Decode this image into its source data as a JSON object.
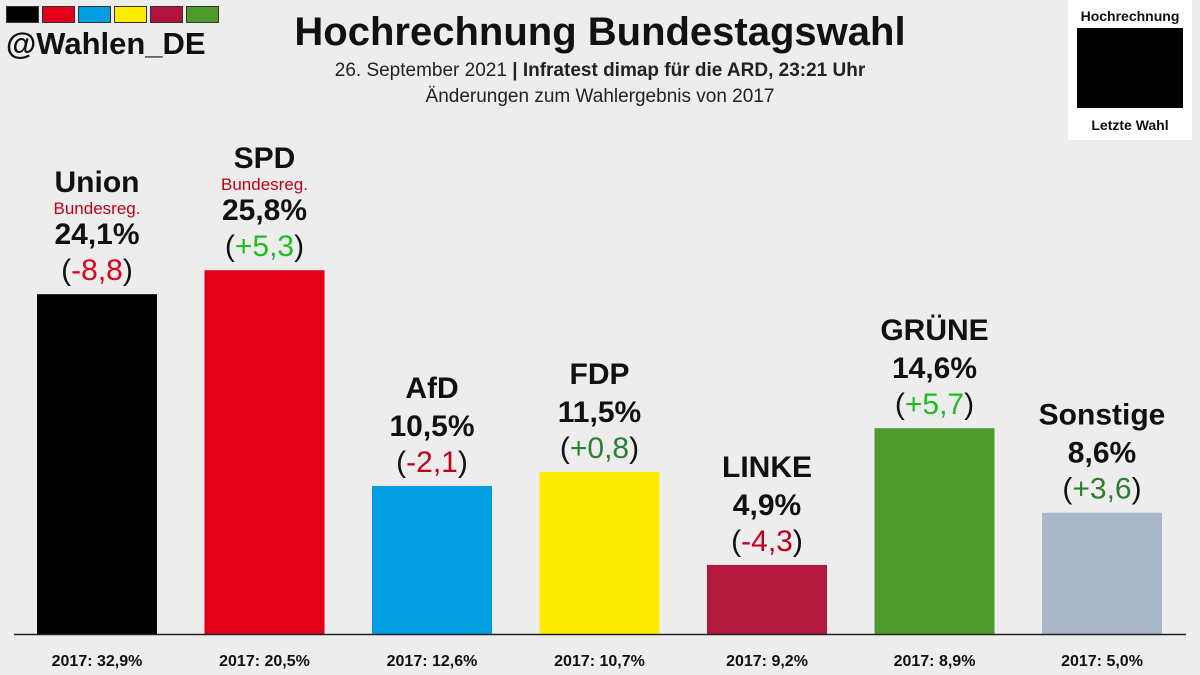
{
  "brand_colors": [
    "#000000",
    "#e2001a",
    "#009ee0",
    "#ffed00",
    "#b3123f",
    "#4e9a2d"
  ],
  "handle": "@Wahlen_DE",
  "header": {
    "title": "Hochrechnung Bundestagswahl",
    "date": "26. September 2021",
    "separator": "|",
    "source": "Infratest dimap für die ARD, 23:21 Uhr",
    "note": "Änderungen zum Wahlergebnis von 2017"
  },
  "legend": {
    "top_label": "Hochrechnung",
    "bottom_label": "Letzte Wahl",
    "swatch_color": "#000000"
  },
  "chart_data": {
    "type": "bar",
    "categories": [
      "Union",
      "SPD",
      "AfD",
      "FDP",
      "LINKE",
      "GRÜNE",
      "Sonstige"
    ],
    "values": [
      24.1,
      25.8,
      10.5,
      11.5,
      4.9,
      14.6,
      8.6
    ],
    "value_labels": [
      "24,1%",
      "25,8%",
      "10,5%",
      "11,5%",
      "4,9%",
      "14,6%",
      "8,6%"
    ],
    "changes": [
      -8.8,
      5.3,
      -2.1,
      0.8,
      -4.3,
      5.7,
      3.6
    ],
    "change_labels": [
      "-8,8",
      "+5,3",
      "-2,1",
      "+0,8",
      "-4,3",
      "+5,7",
      "+3,6"
    ],
    "change_colors": [
      "#e2001a",
      "#22bb22",
      "#c0001a",
      "#2e7d32",
      "#c0001a",
      "#22bb22",
      "#2e7d32"
    ],
    "notes": [
      "Bundesreg.",
      "Bundesreg.",
      "",
      "",
      "",
      "",
      ""
    ],
    "previous_labels": [
      "2017: 32,9%",
      "2017: 20,5%",
      "2017: 12,6%",
      "2017: 10,7%",
      "2017: 9,2%",
      "2017: 8,9%",
      "2017: 5,0%"
    ],
    "colors": [
      "#000000",
      "#e2001a",
      "#009ee0",
      "#ffed00",
      "#b3183e",
      "#4e9a2d",
      "#aab7cb"
    ],
    "ylim": [
      0,
      30
    ]
  }
}
